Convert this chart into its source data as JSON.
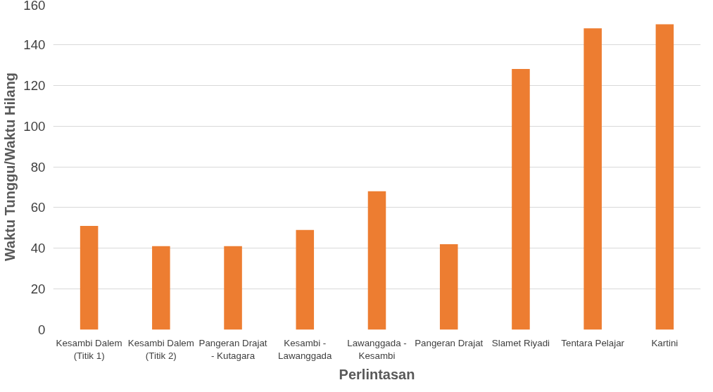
{
  "chart_data": {
    "type": "bar",
    "xlabel": "Perlintasan",
    "ylabel": "Waktu Tunggu/Waktu Hilang",
    "categories": [
      "Kesambi Dalem (Titik 1)",
      "Kesambi Dalem (Titik 2)",
      "Pangeran Drajat - Kutagara",
      "Kesambi - Lawanggada",
      "Lawanggada - Kesambi",
      "Pangeran Drajat",
      "Slamet Riyadi",
      "Tentara Pelajar",
      "Kartini"
    ],
    "values": [
      51,
      41,
      41,
      49,
      68,
      42,
      128,
      148,
      150
    ],
    "color": "#ed7d31",
    "ylim": [
      0,
      160
    ],
    "yticks": [
      0,
      20,
      40,
      60,
      80,
      100,
      120,
      140,
      160
    ],
    "grid": "y"
  }
}
